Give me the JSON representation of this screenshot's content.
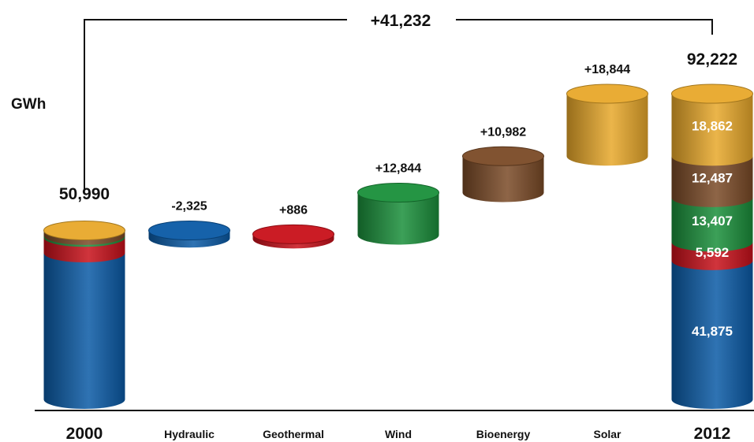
{
  "chart_data": {
    "type": "bar",
    "subtype": "waterfall-cylinders",
    "title": "",
    "ylabel": "GWh",
    "xlabel": "",
    "ylim": [
      0,
      92222
    ],
    "grid": false,
    "legend": "none",
    "total_change_label": "+41,232",
    "start": {
      "label": "2000",
      "total": 50990,
      "total_label": "50,990",
      "segments": [
        {
          "name": "Hydraulic",
          "value": 44200
        },
        {
          "name": "Geothermal",
          "value": 4706
        },
        {
          "name": "Wind",
          "value": 563
        },
        {
          "name": "Bioenergy",
          "value": 1505
        },
        {
          "name": "Solar",
          "value": 18
        }
      ]
    },
    "steps": [
      {
        "label": "Hydraulic",
        "value": -2325,
        "value_label": "-2,325",
        "color": "#0a5aa6"
      },
      {
        "label": "Geothermal",
        "value": 886,
        "value_label": "+886",
        "color": "#c8101a"
      },
      {
        "label": "Wind",
        "value": 12844,
        "value_label": "+12,844",
        "color": "#1a8f3a"
      },
      {
        "label": "Bioenergy",
        "value": 10982,
        "value_label": "+10,982",
        "color": "#7a4a26"
      },
      {
        "label": "Solar",
        "value": 18844,
        "value_label": "+18,844",
        "color": "#e8a82a"
      }
    ],
    "end": {
      "label": "2012",
      "total": 92222,
      "total_label": "92,222",
      "segments": [
        {
          "name": "Hydraulic",
          "value": 41875,
          "value_label": "41,875"
        },
        {
          "name": "Geothermal",
          "value": 5592,
          "value_label": "5,592"
        },
        {
          "name": "Wind",
          "value": 13407,
          "value_label": "13,407"
        },
        {
          "name": "Bioenergy",
          "value": 12487,
          "value_label": "12,487"
        },
        {
          "name": "Solar",
          "value": 18862,
          "value_label": "18,862"
        }
      ]
    }
  },
  "colors": {
    "Hydraulic": "#0a5aa6",
    "Geothermal": "#c8101a",
    "Wind": "#1a8f3a",
    "Bioenergy": "#7a4a26",
    "Solar": "#e8a82a"
  }
}
